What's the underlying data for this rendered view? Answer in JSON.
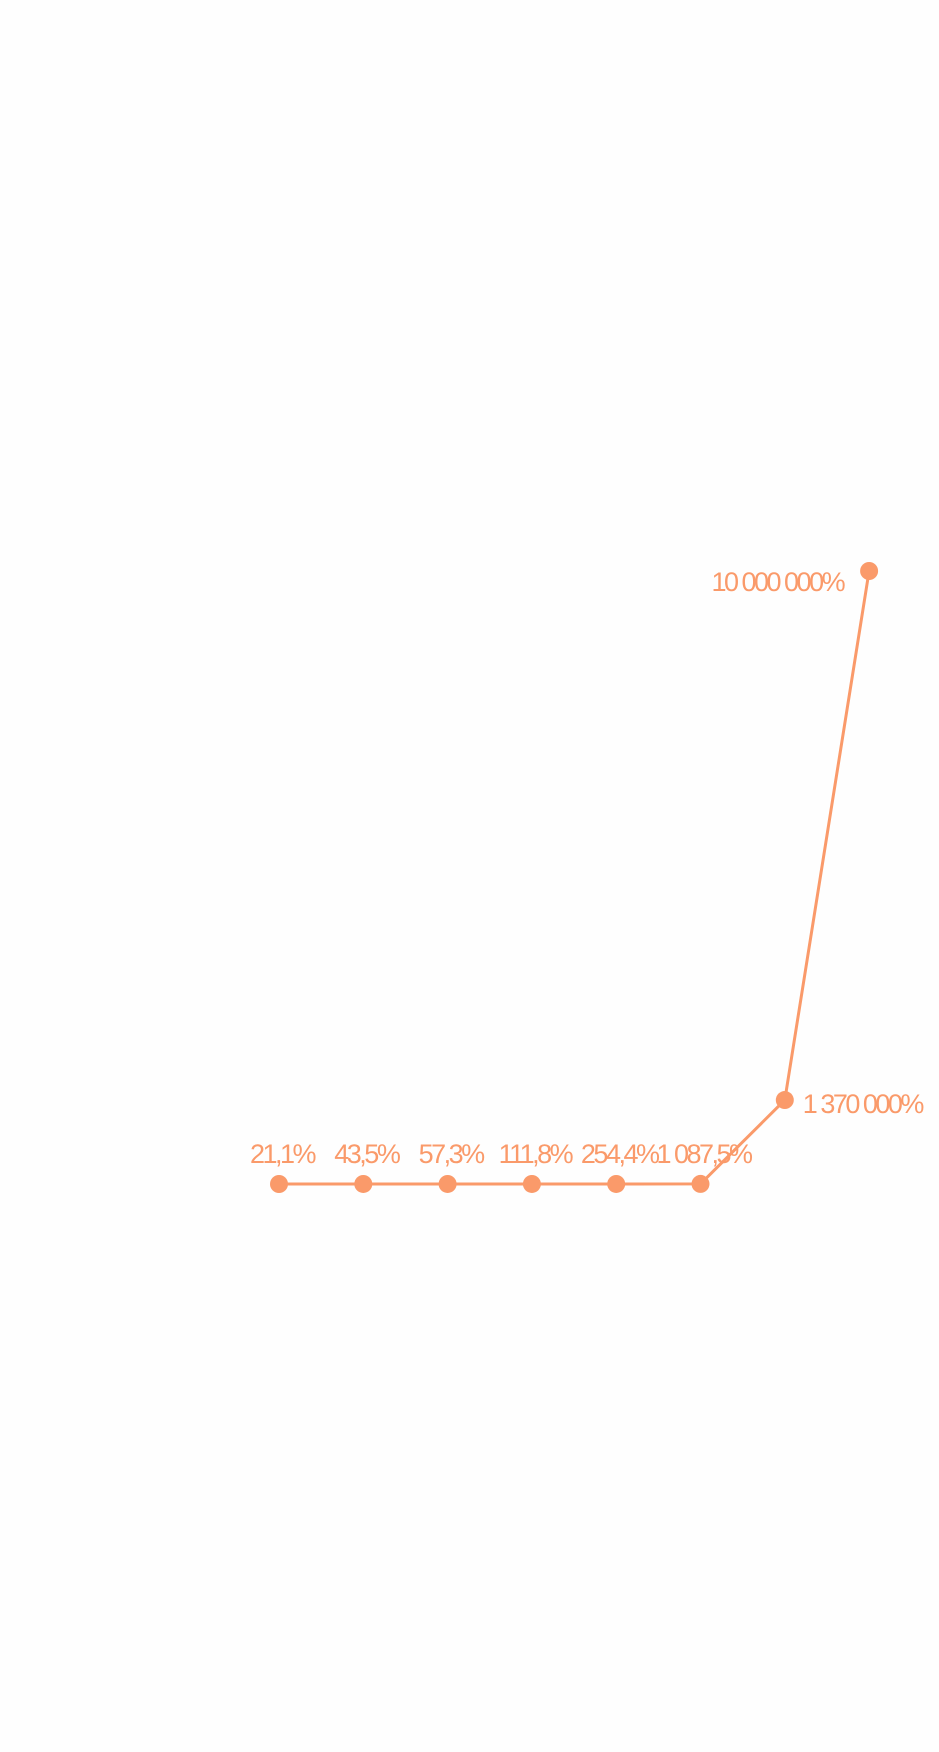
{
  "chart_data": {
    "type": "line",
    "title": "",
    "xlabel": "",
    "ylabel": "",
    "grid": false,
    "legend": "none",
    "color": "#fa9a6a",
    "points": [
      {
        "value": 21.1,
        "label": "21,1%"
      },
      {
        "value": 43.5,
        "label": "43,5%"
      },
      {
        "value": 57.3,
        "label": "57,3%"
      },
      {
        "value": 111.8,
        "label": "111,8%"
      },
      {
        "value": 254.4,
        "label": "254,4%"
      },
      {
        "value": 1087.5,
        "label": "1 087,5%"
      },
      {
        "value": 1370000,
        "label": "1 370 000%"
      },
      {
        "value": 10000000,
        "label": "10 000 000%"
      }
    ]
  }
}
